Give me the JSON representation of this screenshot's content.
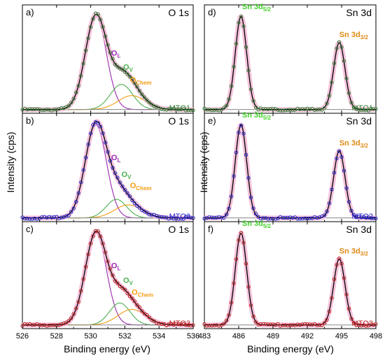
{
  "figure": {
    "ylabel": "Intensity (cps)",
    "xlabel": "Binding energy (eV)"
  },
  "colors": {
    "mto1": "#2e7d32",
    "mto2": "#1f22c8",
    "mto3": "#b71c1c",
    "envelope": "#000000",
    "halo": "#f5b8d6",
    "oL": "#9c27b0",
    "oV": "#4caf50",
    "oChem": "#f39c12",
    "sn52": "#43d12a",
    "sn32": "#e08a14",
    "baseline": "#888888"
  },
  "chart_data": [
    {
      "id": "a",
      "panel_label": "a)",
      "core": "O 1s",
      "sample": "MTO1",
      "sample_color": "#2e7d32",
      "type": "line",
      "xlim": [
        526,
        536
      ],
      "xticks": [
        526,
        528,
        530,
        532,
        534,
        536
      ],
      "peaks": [
        {
          "name": "OL",
          "center": 530.3,
          "height": 1.0,
          "width": 0.62
        },
        {
          "name": "OV",
          "center": 531.8,
          "height": 0.27,
          "width": 0.65
        },
        {
          "name": "OChem",
          "center": 532.4,
          "height": 0.15,
          "width": 0.8
        }
      ],
      "annotations": [
        {
          "base": "O",
          "sub": "L",
          "color": "#9c27b0",
          "x": 531.2,
          "y": 0.58
        },
        {
          "base": "O",
          "sub": "V",
          "color": "#4caf50",
          "x": 531.9,
          "y": 0.43
        },
        {
          "base": "O",
          "sub": "Chem",
          "color": "#f39c12",
          "x": 532.3,
          "y": 0.29
        }
      ]
    },
    {
      "id": "b",
      "panel_label": "b)",
      "core": "O 1s",
      "sample": "MTO2",
      "sample_color": "#1f22c8",
      "type": "line",
      "xlim": [
        526,
        536
      ],
      "xticks": [
        526,
        528,
        530,
        532,
        534,
        536
      ],
      "peaks": [
        {
          "name": "OL",
          "center": 530.3,
          "height": 1.0,
          "width": 0.62
        },
        {
          "name": "OV",
          "center": 531.5,
          "height": 0.2,
          "width": 0.6
        },
        {
          "name": "OChem",
          "center": 532.2,
          "height": 0.14,
          "width": 0.8
        }
      ],
      "annotations": [
        {
          "base": "O",
          "sub": "L",
          "color": "#9c27b0",
          "x": 531.2,
          "y": 0.62
        },
        {
          "base": "O",
          "sub": "V",
          "color": "#4caf50",
          "x": 531.8,
          "y": 0.44
        },
        {
          "base": "O",
          "sub": "Chem",
          "color": "#f39c12",
          "x": 532.3,
          "y": 0.32
        }
      ]
    },
    {
      "id": "c",
      "panel_label": "c)",
      "core": "O 1s",
      "sample": "MTO3",
      "sample_color": "#b71c1c",
      "type": "line",
      "xlim": [
        526,
        536
      ],
      "xticks": [
        526,
        528,
        530,
        532,
        534,
        536
      ],
      "peaks": [
        {
          "name": "OL",
          "center": 530.3,
          "height": 1.0,
          "width": 0.62
        },
        {
          "name": "OV",
          "center": 531.7,
          "height": 0.24,
          "width": 0.6
        },
        {
          "name": "OChem",
          "center": 532.4,
          "height": 0.17,
          "width": 0.8
        }
      ],
      "annotations": [
        {
          "base": "O",
          "sub": "L",
          "color": "#9c27b0",
          "x": 531.2,
          "y": 0.62
        },
        {
          "base": "O",
          "sub": "V",
          "color": "#4caf50",
          "x": 531.9,
          "y": 0.46
        },
        {
          "base": "O",
          "sub": "Chem",
          "color": "#f39c12",
          "x": 532.4,
          "y": 0.33
        }
      ]
    },
    {
      "id": "d",
      "panel_label": "d)",
      "core": "Sn 3d",
      "sample": "MTO1",
      "sample_color": "#2e7d32",
      "type": "line",
      "xlim": [
        483,
        498
      ],
      "xticks": [
        483,
        486,
        489,
        492,
        495,
        498
      ],
      "peaks": [
        {
          "name": "Sn 3d5/2",
          "center": 486.2,
          "height": 1.0,
          "width": 0.5
        },
        {
          "name": "Sn 3d3/2",
          "center": 494.8,
          "height": 0.72,
          "width": 0.5
        }
      ],
      "annotations": [
        {
          "base": "Sn 3d",
          "sub": "5/2",
          "color": "#43d12a",
          "x": 486.3,
          "y": 1.08
        },
        {
          "base": "Sn 3d",
          "sub": "3/2",
          "color": "#e08a14",
          "x": 494.8,
          "y": 0.78
        }
      ]
    },
    {
      "id": "e",
      "panel_label": "e)",
      "core": "Sn 3d",
      "sample": "MTO2",
      "sample_color": "#1f22c8",
      "type": "line",
      "xlim": [
        483,
        498
      ],
      "xticks": [
        483,
        486,
        489,
        492,
        495,
        498
      ],
      "peaks": [
        {
          "name": "Sn 3d5/2",
          "center": 486.2,
          "height": 1.0,
          "width": 0.5
        },
        {
          "name": "Sn 3d3/2",
          "center": 494.8,
          "height": 0.72,
          "width": 0.5
        }
      ],
      "annotations": [
        {
          "base": "Sn 3d",
          "sub": "5/2",
          "color": "#43d12a",
          "x": 486.3,
          "y": 1.08
        },
        {
          "base": "Sn 3d",
          "sub": "3/2",
          "color": "#e08a14",
          "x": 494.8,
          "y": 0.78
        }
      ]
    },
    {
      "id": "f",
      "panel_label": "f)",
      "core": "Sn 3d",
      "sample": "MTO3",
      "sample_color": "#b71c1c",
      "type": "line",
      "xlim": [
        483,
        498
      ],
      "xticks": [
        483,
        486,
        489,
        492,
        495,
        498
      ],
      "peaks": [
        {
          "name": "Sn 3d5/2",
          "center": 486.2,
          "height": 1.0,
          "width": 0.5
        },
        {
          "name": "Sn 3d3/2",
          "center": 494.8,
          "height": 0.72,
          "width": 0.5
        }
      ],
      "annotations": [
        {
          "base": "Sn 3d",
          "sub": "5/2",
          "color": "#43d12a",
          "x": 486.3,
          "y": 1.08
        },
        {
          "base": "Sn 3d",
          "sub": "3/2",
          "color": "#e08a14",
          "x": 494.8,
          "y": 0.78
        }
      ]
    }
  ]
}
